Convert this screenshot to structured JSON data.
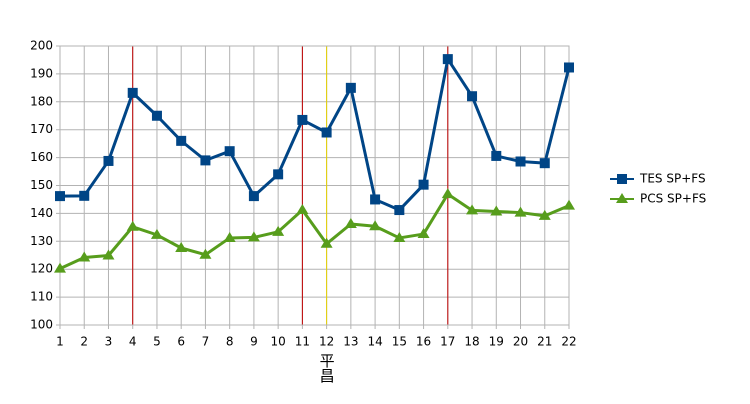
{
  "chart_data": {
    "type": "line",
    "categories": [
      "1",
      "2",
      "3",
      "4",
      "5",
      "6",
      "7",
      "8",
      "9",
      "10",
      "11",
      "12",
      "13",
      "14",
      "15",
      "16",
      "17",
      "18",
      "19",
      "20",
      "21",
      "22"
    ],
    "series": [
      {
        "name": "TES SP+FS",
        "color": "#004586",
        "marker": "square",
        "values": [
          146.2,
          146.3,
          158.8,
          183.2,
          175,
          166,
          159,
          162.3,
          146.2,
          154,
          173.5,
          169,
          185,
          145,
          141.2,
          150.3,
          195.3,
          182,
          160.6,
          158.6,
          158,
          192.3
        ]
      },
      {
        "name": "PCS SP+FS",
        "color": "#579d1c",
        "marker": "triangle",
        "values": [
          120.2,
          124.2,
          124.9,
          135.2,
          132.3,
          127.6,
          125.2,
          131.2,
          131.4,
          133.4,
          141.2,
          129.1,
          136.2,
          135.4,
          131.2,
          132.6,
          146.9,
          141.1,
          140.7,
          140.3,
          139.1,
          142.8
        ]
      }
    ],
    "ylim": [
      100,
      200
    ],
    "yticks": [
      100,
      110,
      120,
      130,
      140,
      150,
      160,
      170,
      180,
      190,
      200
    ],
    "grid": true,
    "legend": "right",
    "vlines": [
      {
        "x": "4",
        "color": "#c00000"
      },
      {
        "x": "11",
        "color": "#c00000"
      },
      {
        "x": "12",
        "color": "#e6d200"
      },
      {
        "x": "17",
        "color": "#c00000"
      }
    ],
    "annotations": [
      {
        "text": "平昌",
        "x": "12"
      }
    ]
  }
}
